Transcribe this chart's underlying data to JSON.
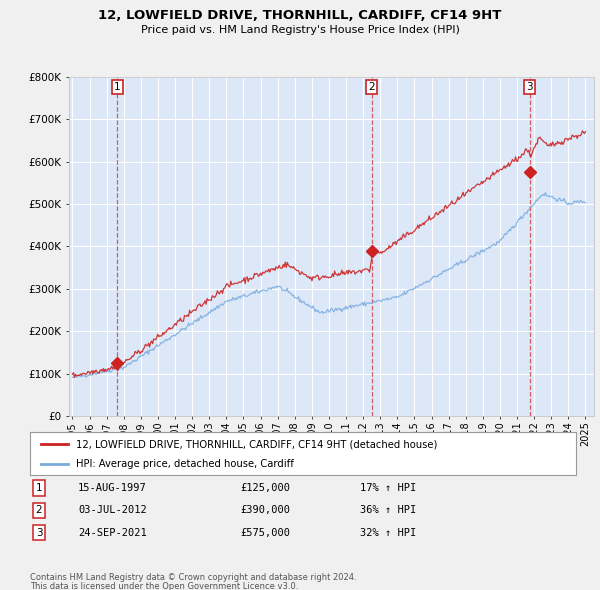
{
  "title": "12, LOWFIELD DRIVE, THORNHILL, CARDIFF, CF14 9HT",
  "subtitle": "Price paid vs. HM Land Registry's House Price Index (HPI)",
  "legend_red": "12, LOWFIELD DRIVE, THORNHILL, CARDIFF, CF14 9HT (detached house)",
  "legend_blue": "HPI: Average price, detached house, Cardiff",
  "footer1": "Contains HM Land Registry data © Crown copyright and database right 2024.",
  "footer2": "This data is licensed under the Open Government Licence v3.0.",
  "transactions": [
    {
      "num": 1,
      "date": "15-AUG-1997",
      "price": "£125,000",
      "hpi": "17% ↑ HPI",
      "year": 1997.62
    },
    {
      "num": 2,
      "date": "03-JUL-2012",
      "price": "£390,000",
      "hpi": "36% ↑ HPI",
      "year": 2012.5
    },
    {
      "num": 3,
      "date": "24-SEP-2021",
      "price": "£575,000",
      "hpi": "32% ↑ HPI",
      "year": 2021.73
    }
  ],
  "transaction_values": [
    125000,
    390000,
    575000
  ],
  "fig_bg": "#f0f0f0",
  "plot_bg": "#dce8f8",
  "red_color": "#cc2222",
  "blue_color": "#7aaadd",
  "grid_color": "#ffffff",
  "ylim": [
    0,
    800000
  ],
  "xlim_start": 1994.8,
  "xlim_end": 2025.5,
  "yticks": [
    0,
    100000,
    200000,
    300000,
    400000,
    500000,
    600000,
    700000,
    800000
  ],
  "ytick_labels": [
    "£0",
    "£100K",
    "£200K",
    "£300K",
    "£400K",
    "£500K",
    "£600K",
    "£700K",
    "£800K"
  ],
  "xticks": [
    1995,
    1996,
    1997,
    1998,
    1999,
    2000,
    2001,
    2002,
    2003,
    2004,
    2005,
    2006,
    2007,
    2008,
    2009,
    2010,
    2011,
    2012,
    2013,
    2014,
    2015,
    2016,
    2017,
    2018,
    2019,
    2020,
    2021,
    2022,
    2023,
    2024,
    2025
  ]
}
